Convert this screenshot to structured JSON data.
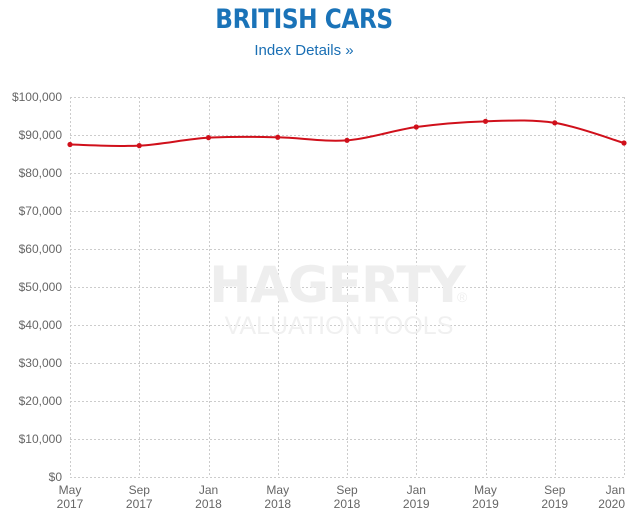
{
  "header": {
    "title": "BRITISH CARS",
    "details_link": "Index Details »"
  },
  "watermark": {
    "brand": "HAGERTY",
    "registered": "®",
    "tagline": "VALUATION TOOLS"
  },
  "colors": {
    "title": "#1a73b8",
    "link": "#1a6fb4",
    "line": "#d0101b",
    "grid": "#cccccc",
    "tick": "#666666",
    "watermark": "#eeeeee"
  },
  "chart_data": {
    "type": "line",
    "title": "BRITISH CARS",
    "xlabel": "",
    "ylabel": "",
    "categories": [
      [
        "May",
        "2017"
      ],
      [
        "Sep",
        "2017"
      ],
      [
        "Jan",
        "2018"
      ],
      [
        "May",
        "2018"
      ],
      [
        "Sep",
        "2018"
      ],
      [
        "Jan",
        "2019"
      ],
      [
        "May",
        "2019"
      ],
      [
        "Sep",
        "2019"
      ],
      [
        "Jan",
        "2020"
      ]
    ],
    "series": [
      {
        "values": [
          87500,
          87200,
          89300,
          89400,
          88600,
          92100,
          93600,
          93200,
          87900
        ]
      }
    ],
    "ylim": [
      0,
      100000
    ],
    "yticks": [
      {
        "value": 0,
        "label": "$0"
      },
      {
        "value": 10000,
        "label": "$10,000"
      },
      {
        "value": 20000,
        "label": "$20,000"
      },
      {
        "value": 30000,
        "label": "$30,000"
      },
      {
        "value": 40000,
        "label": "$40,000"
      },
      {
        "value": 50000,
        "label": "$50,000"
      },
      {
        "value": 60000,
        "label": "$60,000"
      },
      {
        "value": 70000,
        "label": "$70,000"
      },
      {
        "value": 80000,
        "label": "$80,000"
      },
      {
        "value": 90000,
        "label": "$90,000"
      },
      {
        "value": 100000,
        "label": "$100,000"
      }
    ],
    "grid": true,
    "legend": "none"
  }
}
